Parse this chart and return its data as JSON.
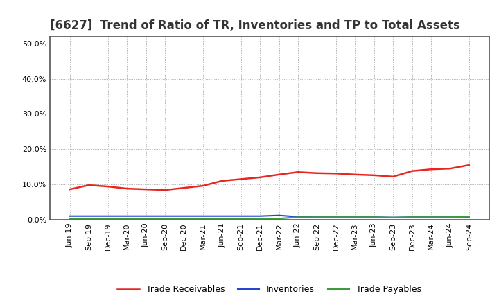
{
  "title": "[6627]  Trend of Ratio of TR, Inventories and TP to Total Assets",
  "x_labels": [
    "Jun-19",
    "Sep-19",
    "Dec-19",
    "Mar-20",
    "Jun-20",
    "Sep-20",
    "Dec-20",
    "Mar-21",
    "Jun-21",
    "Sep-21",
    "Dec-21",
    "Mar-22",
    "Jun-22",
    "Sep-22",
    "Dec-22",
    "Mar-23",
    "Jun-23",
    "Sep-23",
    "Dec-23",
    "Mar-24",
    "Jun-24",
    "Sep-24"
  ],
  "trade_receivables": [
    0.086,
    0.098,
    0.094,
    0.088,
    0.086,
    0.084,
    0.09,
    0.096,
    0.11,
    0.115,
    0.12,
    0.128,
    0.135,
    0.132,
    0.131,
    0.128,
    0.126,
    0.122,
    0.138,
    0.143,
    0.145,
    0.155
  ],
  "inventories": [
    0.01,
    0.01,
    0.01,
    0.01,
    0.01,
    0.01,
    0.01,
    0.01,
    0.01,
    0.01,
    0.01,
    0.012,
    0.008,
    0.007,
    0.007,
    0.007,
    0.007,
    0.006,
    0.007,
    0.007,
    0.007,
    0.007
  ],
  "trade_payables": [
    0.003,
    0.003,
    0.003,
    0.003,
    0.003,
    0.003,
    0.003,
    0.003,
    0.003,
    0.003,
    0.003,
    0.003,
    0.007,
    0.007,
    0.007,
    0.007,
    0.007,
    0.006,
    0.007,
    0.007,
    0.007,
    0.008
  ],
  "tr_color": "#e8251e",
  "inv_color": "#2945d4",
  "tp_color": "#3d9c3d",
  "background_color": "#ffffff",
  "plot_bg_color": "#ffffff",
  "grid_color": "#aaaaaa",
  "spine_color": "#555555",
  "ylim": [
    0.0,
    0.52
  ],
  "yticks": [
    0.0,
    0.1,
    0.2,
    0.3,
    0.4,
    0.5
  ],
  "legend_labels": [
    "Trade Receivables",
    "Inventories",
    "Trade Payables"
  ],
  "title_fontsize": 12,
  "tick_fontsize": 8,
  "legend_fontsize": 9
}
